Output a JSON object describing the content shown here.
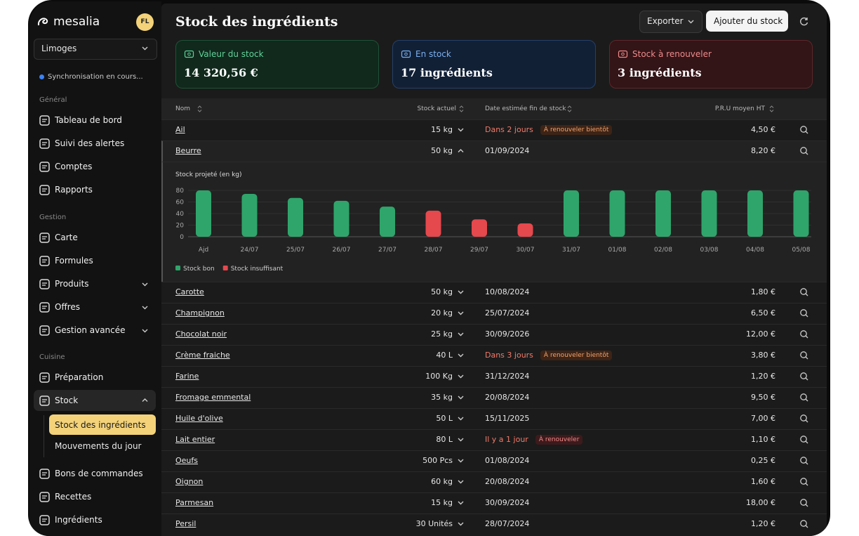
{
  "sidebar": {
    "brand": "mesalia",
    "avatar": "FL",
    "location": "Limoges",
    "sync": "Synchronisation en cours...",
    "sections": [
      {
        "title": "Général",
        "items": [
          "Tableau de bord",
          "Suivi des alertes",
          "Comptes",
          "Rapports"
        ]
      },
      {
        "title": "Gestion",
        "items": [
          "Carte",
          "Formules",
          "Produits",
          "Offres",
          "Gestion avancée"
        ]
      },
      {
        "title": "Cuisine",
        "items": [
          "Préparation",
          "Stock"
        ]
      }
    ],
    "stock_sub": [
      "Stock des ingrédients",
      "Mouvements du jour"
    ],
    "bottom_items": [
      "Bons de commandes",
      "Recettes",
      "Ingrédients"
    ]
  },
  "header": {
    "title": "Stock des ingrédients",
    "export": "Exporter",
    "add": "Ajouter du stock"
  },
  "cards": [
    {
      "label": "Valeur du stock",
      "value": "14 320,56 €"
    },
    {
      "label": "En stock",
      "value": "17 ingrédients"
    },
    {
      "label": "Stock à renouveler",
      "value": "3 ingrédients"
    }
  ],
  "table": {
    "columns": [
      "Nom",
      "Stock actuel",
      "Date estimée fin de stock",
      "P.R.U moyen HT"
    ],
    "rows": [
      {
        "name": "Ail",
        "stock": "15 kg",
        "date": "Dans 2 jours",
        "badge": "À renouveler bientôt",
        "price": "4,50 €"
      },
      {
        "name": "Beurre",
        "stock": "50 kg",
        "date": "01/09/2024",
        "price": "8,20 €"
      },
      {
        "name": "Carotte",
        "stock": "50 kg",
        "date": "10/08/2024",
        "price": "1,80 €"
      },
      {
        "name": "Champignon",
        "stock": "20 kg",
        "date": "25/07/2024",
        "price": "6,50 €"
      },
      {
        "name": "Chocolat noir",
        "stock": "25 kg",
        "date": "30/09/2026",
        "price": "12,00 €"
      },
      {
        "name": "Crème fraiche",
        "stock": "40 L",
        "date": "Dans 3 jours",
        "badge": "À renouveler bientôt",
        "price": "3,80 €"
      },
      {
        "name": "Farine",
        "stock": "100 Kg",
        "date": "31/12/2024",
        "price": "1,20 €"
      },
      {
        "name": "Fromage emmental",
        "stock": "35 kg",
        "date": "20/08/2024",
        "price": "9,50 €"
      },
      {
        "name": "Huile d'olive",
        "stock": "50 L",
        "date": "15/11/2025",
        "price": "7,00 €"
      },
      {
        "name": "Lait entier",
        "stock": "80 L",
        "date": "Il y a 1 jour",
        "badge": "À renouveler",
        "price": "1,10 €"
      },
      {
        "name": "Oeufs",
        "stock": "500 Pcs",
        "date": "01/08/2024",
        "price": "0,25 €"
      },
      {
        "name": "Oignon",
        "stock": "60 kg",
        "date": "20/08/2024",
        "price": "1,60 €"
      },
      {
        "name": "Parmesan",
        "stock": "15 kg",
        "date": "30/09/2024",
        "price": "18,00 €"
      },
      {
        "name": "Persil",
        "stock": "30 Unités",
        "date": "28/07/2024",
        "price": "1,20 €"
      }
    ]
  },
  "chart_data": {
    "type": "bar",
    "title": "Stock projeté (en kg)",
    "categories": [
      "Ajd",
      "24/07",
      "25/07",
      "26/07",
      "27/07",
      "28/07",
      "29/07",
      "30/07",
      "31/07",
      "01/08",
      "02/08",
      "03/08",
      "04/08",
      "05/08"
    ],
    "series": [
      {
        "name": "Stock bon",
        "color": "#2fa56b",
        "values": [
          80,
          74,
          67,
          62,
          52,
          null,
          null,
          null,
          80,
          80,
          80,
          80,
          80,
          80
        ]
      },
      {
        "name": "Stock insuffisant",
        "color": "#e5484d",
        "values": [
          null,
          null,
          null,
          null,
          null,
          45,
          30,
          23,
          null,
          null,
          null,
          null,
          null,
          null
        ]
      }
    ],
    "ylim": [
      0,
      80
    ],
    "yticks": [
      0,
      20,
      40,
      60,
      80
    ],
    "grid": true
  }
}
